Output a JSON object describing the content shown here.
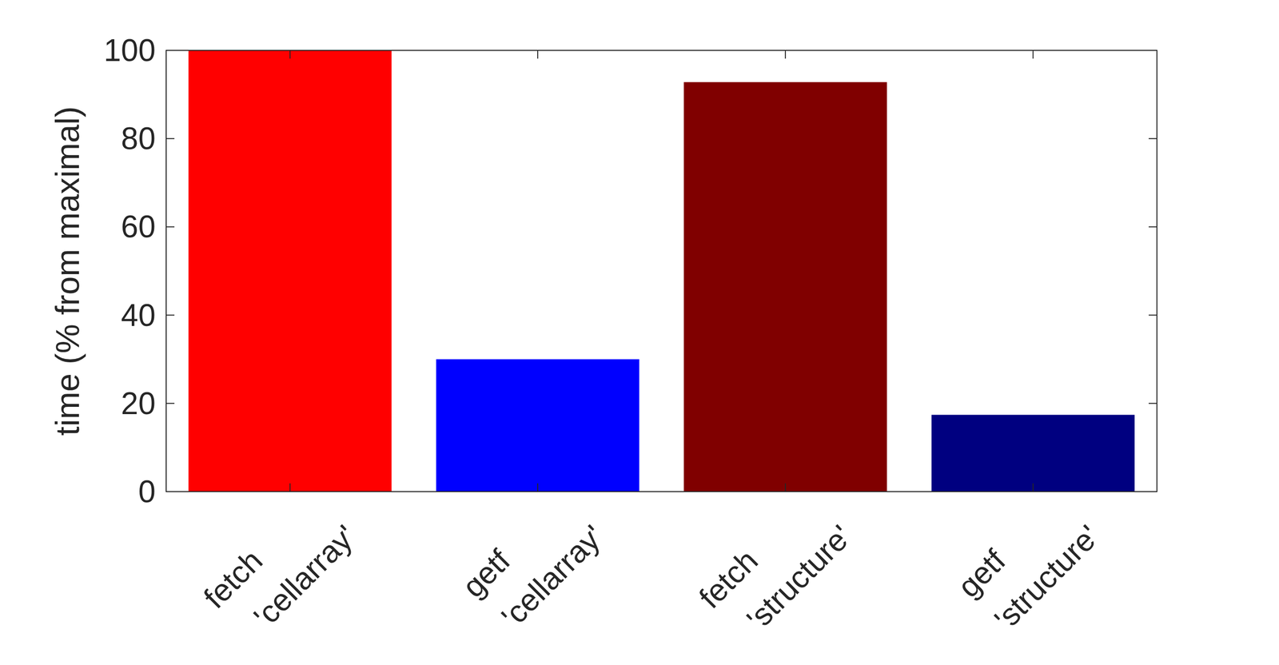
{
  "chart_data": {
    "type": "bar",
    "y_label": "time (% from maximal)",
    "categories": [
      "fetch\n'cellarray'",
      "getf\n'cellarray'",
      "fetch\n'structure'",
      "getf\n'structure'"
    ],
    "values": [
      100,
      30,
      92.8,
      17.4
    ],
    "colors": [
      "#ff0000",
      "#0000ff",
      "#800000",
      "#000080"
    ],
    "ylim": [
      0,
      100
    ],
    "yticks": [
      0,
      20,
      40,
      60,
      80,
      100
    ],
    "grid": false
  }
}
